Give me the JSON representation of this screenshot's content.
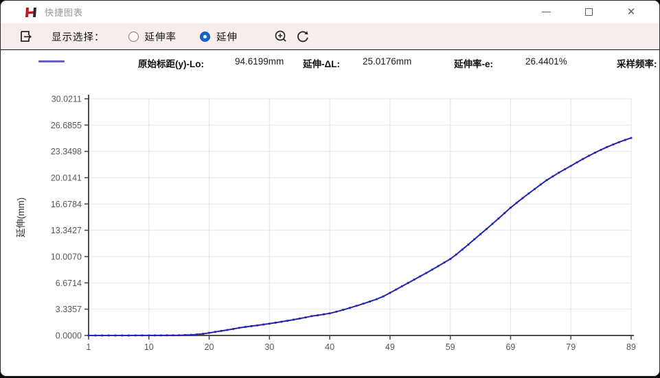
{
  "window": {
    "title": "快捷图表",
    "app_icon": "h-logo-icon",
    "controls": [
      "minimize-icon",
      "maximize-icon",
      "close-icon"
    ],
    "close_glyph": "✕"
  },
  "toolbar": {
    "display_select_label": "显示选择：",
    "radios": [
      {
        "label": "延伸率",
        "selected": false
      },
      {
        "label": "延伸",
        "selected": true
      }
    ],
    "icons": [
      "export-icon",
      "zoom-in-icon",
      "refresh-icon"
    ],
    "background": "#f7eded",
    "radio_selected_color": "#1166cc"
  },
  "infobar": {
    "legend_swatch_color": "#6060c2",
    "fields": [
      {
        "label": "原始标距(y)-Lo:",
        "value": "94.6199mm"
      },
      {
        "label": "延伸-ΔL:",
        "value": "25.0176mm"
      },
      {
        "label": "延伸率-e:",
        "value": "26.4401%"
      },
      {
        "label": "采样频率:",
        "value": ""
      }
    ]
  },
  "chart_data": {
    "type": "line",
    "title": "",
    "xlabel": "",
    "ylabel": "延伸(mm)",
    "x_ticks": [
      1,
      10,
      20,
      30,
      40,
      49,
      59,
      69,
      79,
      89
    ],
    "y_ticks": [
      "30.0211",
      "26.6855",
      "23.3498",
      "20.0141",
      "16.6784",
      "13.3427",
      "10.0070",
      "6.6714",
      "3.3357",
      "0.0000"
    ],
    "ylim": [
      0,
      30.0211
    ],
    "xlim": [
      1,
      89
    ],
    "grid": true,
    "legend_position": "none",
    "line_color": "#2424ad",
    "grid_color": "#e4e4e4",
    "axis_color": "#4d4d4d",
    "tick_label_color": "#585858",
    "series": [
      {
        "name": "延伸",
        "x": [
          1,
          2,
          3,
          4,
          5,
          6,
          7,
          8,
          9,
          10,
          11,
          12,
          13,
          14,
          15,
          16,
          17,
          18,
          19,
          20,
          21,
          22,
          23,
          24,
          25,
          26,
          27,
          28,
          29,
          30,
          31,
          32,
          33,
          34,
          35,
          36,
          37,
          38,
          39,
          40,
          41,
          42,
          43,
          44,
          45,
          46,
          47,
          48,
          49,
          50,
          51,
          52,
          53,
          54,
          55,
          56,
          57,
          58,
          59,
          60,
          61,
          62,
          63,
          64,
          65,
          66,
          67,
          68,
          69,
          70,
          71,
          72,
          73,
          74,
          75,
          76,
          77,
          78,
          79,
          80,
          81,
          82,
          83,
          84,
          85,
          86,
          87,
          88,
          89
        ],
        "y": [
          0,
          0,
          0,
          0,
          0,
          0,
          0,
          0.01,
          0.01,
          0.01,
          0.01,
          0.01,
          0.02,
          0.02,
          0.03,
          0.05,
          0.08,
          0.13,
          0.21,
          0.33,
          0.45,
          0.57,
          0.7,
          0.83,
          0.97,
          1.08,
          1.18,
          1.28,
          1.39,
          1.5,
          1.62,
          1.74,
          1.87,
          2.0,
          2.14,
          2.29,
          2.45,
          2.56,
          2.68,
          2.8,
          3.02,
          3.25,
          3.5,
          3.76,
          4.03,
          4.31,
          4.6,
          4.95,
          5.4,
          5.82,
          6.25,
          6.66,
          7.08,
          7.5,
          7.92,
          8.35,
          8.8,
          9.25,
          9.7,
          10.28,
          10.9,
          11.54,
          12.2,
          12.85,
          13.5,
          14.16,
          14.84,
          15.52,
          16.2,
          16.82,
          17.42,
          18.0,
          18.58,
          19.15,
          19.7,
          20.18,
          20.65,
          21.08,
          21.5,
          21.95,
          22.38,
          22.8,
          23.18,
          23.55,
          23.9,
          24.22,
          24.52,
          24.8,
          25.05
        ]
      }
    ]
  }
}
